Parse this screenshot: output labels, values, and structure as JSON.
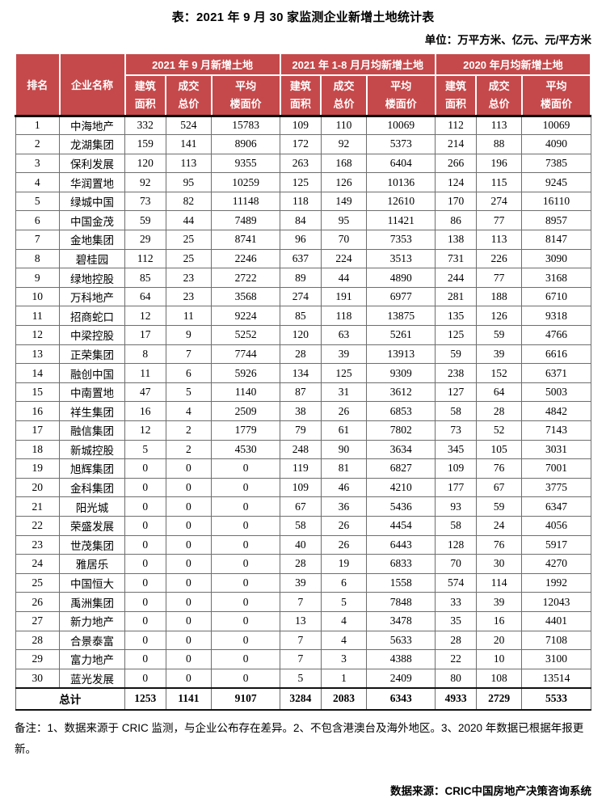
{
  "title": "表：2021 年 9 月 30 家监测企业新增土地统计表",
  "unit_note": "单位：万平方米、亿元、元/平方米",
  "colors": {
    "header_red": "#C5494B",
    "header_text": "#ffffff"
  },
  "table": {
    "col_rank": "排名",
    "col_company": "企业名称",
    "groups": [
      {
        "label": "2021 年 9 月新增土地"
      },
      {
        "label": "2021 年 1-8 月月均新增土地"
      },
      {
        "label": "2020 年月均新增土地"
      }
    ],
    "sub_headers": [
      {
        "l1": "建筑",
        "l2": "面积"
      },
      {
        "l1": "成交",
        "l2": "总价"
      },
      {
        "l1": "平均",
        "l2": "楼面价"
      }
    ],
    "rows": [
      {
        "rank": "1",
        "company": "中海地产",
        "values": [
          "332",
          "524",
          "15783",
          "109",
          "110",
          "10069",
          "112",
          "113",
          "10069"
        ]
      },
      {
        "rank": "2",
        "company": "龙湖集团",
        "values": [
          "159",
          "141",
          "8906",
          "172",
          "92",
          "5373",
          "214",
          "88",
          "4090"
        ]
      },
      {
        "rank": "3",
        "company": "保利发展",
        "values": [
          "120",
          "113",
          "9355",
          "263",
          "168",
          "6404",
          "266",
          "196",
          "7385"
        ]
      },
      {
        "rank": "4",
        "company": "华润置地",
        "values": [
          "92",
          "95",
          "10259",
          "125",
          "126",
          "10136",
          "124",
          "115",
          "9245"
        ]
      },
      {
        "rank": "5",
        "company": "绿城中国",
        "values": [
          "73",
          "82",
          "11148",
          "118",
          "149",
          "12610",
          "170",
          "274",
          "16110"
        ]
      },
      {
        "rank": "6",
        "company": "中国金茂",
        "values": [
          "59",
          "44",
          "7489",
          "84",
          "95",
          "11421",
          "86",
          "77",
          "8957"
        ]
      },
      {
        "rank": "7",
        "company": "金地集团",
        "values": [
          "29",
          "25",
          "8741",
          "96",
          "70",
          "7353",
          "138",
          "113",
          "8147"
        ]
      },
      {
        "rank": "8",
        "company": "碧桂园",
        "values": [
          "112",
          "25",
          "2246",
          "637",
          "224",
          "3513",
          "731",
          "226",
          "3090"
        ]
      },
      {
        "rank": "9",
        "company": "绿地控股",
        "values": [
          "85",
          "23",
          "2722",
          "89",
          "44",
          "4890",
          "244",
          "77",
          "3168"
        ]
      },
      {
        "rank": "10",
        "company": "万科地产",
        "values": [
          "64",
          "23",
          "3568",
          "274",
          "191",
          "6977",
          "281",
          "188",
          "6710"
        ]
      },
      {
        "rank": "11",
        "company": "招商蛇口",
        "values": [
          "12",
          "11",
          "9224",
          "85",
          "118",
          "13875",
          "135",
          "126",
          "9318"
        ]
      },
      {
        "rank": "12",
        "company": "中梁控股",
        "values": [
          "17",
          "9",
          "5252",
          "120",
          "63",
          "5261",
          "125",
          "59",
          "4766"
        ]
      },
      {
        "rank": "13",
        "company": "正荣集团",
        "values": [
          "8",
          "7",
          "7744",
          "28",
          "39",
          "13913",
          "59",
          "39",
          "6616"
        ]
      },
      {
        "rank": "14",
        "company": "融创中国",
        "values": [
          "11",
          "6",
          "5926",
          "134",
          "125",
          "9309",
          "238",
          "152",
          "6371"
        ]
      },
      {
        "rank": "15",
        "company": "中南置地",
        "values": [
          "47",
          "5",
          "1140",
          "87",
          "31",
          "3612",
          "127",
          "64",
          "5003"
        ]
      },
      {
        "rank": "16",
        "company": "祥生集团",
        "values": [
          "16",
          "4",
          "2509",
          "38",
          "26",
          "6853",
          "58",
          "28",
          "4842"
        ]
      },
      {
        "rank": "17",
        "company": "融信集团",
        "values": [
          "12",
          "2",
          "1779",
          "79",
          "61",
          "7802",
          "73",
          "52",
          "7143"
        ]
      },
      {
        "rank": "18",
        "company": "新城控股",
        "values": [
          "5",
          "2",
          "4530",
          "248",
          "90",
          "3634",
          "345",
          "105",
          "3031"
        ]
      },
      {
        "rank": "19",
        "company": "旭辉集团",
        "values": [
          "0",
          "0",
          "0",
          "119",
          "81",
          "6827",
          "109",
          "76",
          "7001"
        ]
      },
      {
        "rank": "20",
        "company": "金科集团",
        "values": [
          "0",
          "0",
          "0",
          "109",
          "46",
          "4210",
          "177",
          "67",
          "3775"
        ]
      },
      {
        "rank": "21",
        "company": "阳光城",
        "values": [
          "0",
          "0",
          "0",
          "67",
          "36",
          "5436",
          "93",
          "59",
          "6347"
        ]
      },
      {
        "rank": "22",
        "company": "荣盛发展",
        "values": [
          "0",
          "0",
          "0",
          "58",
          "26",
          "4454",
          "58",
          "24",
          "4056"
        ]
      },
      {
        "rank": "23",
        "company": "世茂集团",
        "values": [
          "0",
          "0",
          "0",
          "40",
          "26",
          "6443",
          "128",
          "76",
          "5917"
        ]
      },
      {
        "rank": "24",
        "company": "雅居乐",
        "values": [
          "0",
          "0",
          "0",
          "28",
          "19",
          "6833",
          "70",
          "30",
          "4270"
        ]
      },
      {
        "rank": "25",
        "company": "中国恒大",
        "values": [
          "0",
          "0",
          "0",
          "39",
          "6",
          "1558",
          "574",
          "114",
          "1992"
        ]
      },
      {
        "rank": "26",
        "company": "禹洲集团",
        "values": [
          "0",
          "0",
          "0",
          "7",
          "5",
          "7848",
          "33",
          "39",
          "12043"
        ]
      },
      {
        "rank": "27",
        "company": "新力地产",
        "values": [
          "0",
          "0",
          "0",
          "13",
          "4",
          "3478",
          "35",
          "16",
          "4401"
        ]
      },
      {
        "rank": "28",
        "company": "合景泰富",
        "values": [
          "0",
          "0",
          "0",
          "7",
          "4",
          "5633",
          "28",
          "20",
          "7108"
        ]
      },
      {
        "rank": "29",
        "company": "富力地产",
        "values": [
          "0",
          "0",
          "0",
          "7",
          "3",
          "4388",
          "22",
          "10",
          "3100"
        ]
      },
      {
        "rank": "30",
        "company": "蓝光发展",
        "values": [
          "0",
          "0",
          "0",
          "5",
          "1",
          "2409",
          "80",
          "108",
          "13514"
        ]
      }
    ],
    "total_label": "总计",
    "total_values": [
      "1253",
      "1141",
      "9107",
      "3284",
      "2083",
      "6343",
      "4933",
      "2729",
      "5533"
    ]
  },
  "notes": "备注：1、数据来源于 CRIC 监测，与企业公布存在差异。2、不包含港澳台及海外地区。3、2020 年数据已根据年报更新。",
  "source": "数据来源：CRIC中国房地产决策咨询系统"
}
